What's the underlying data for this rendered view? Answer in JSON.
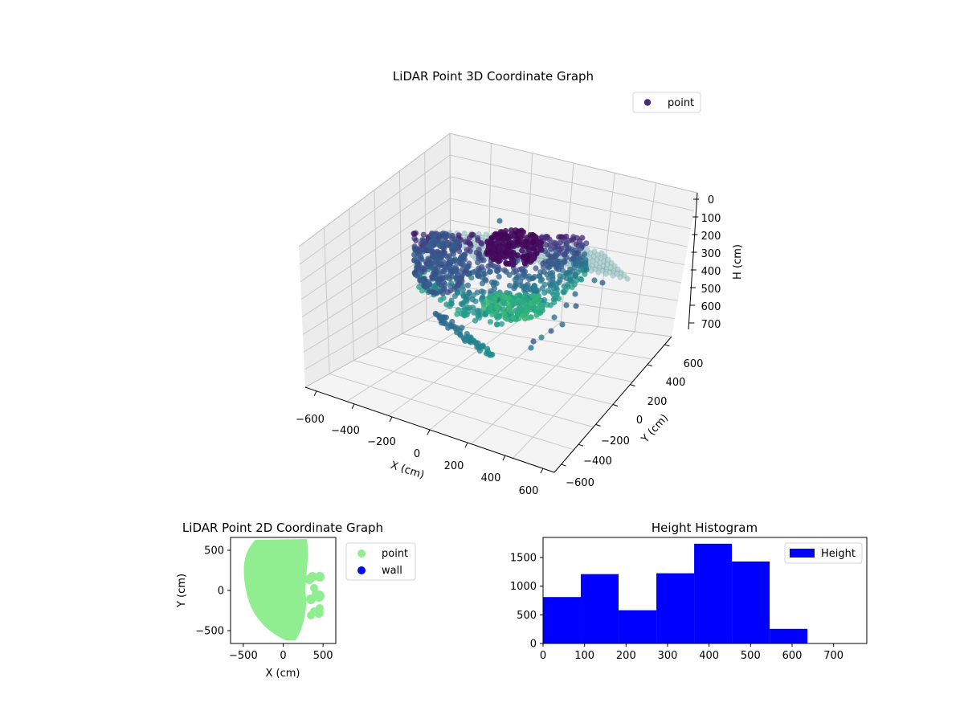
{
  "chart_data": [
    {
      "type": "scatter",
      "title": "LiDAR Point 3D Coordinate Graph",
      "xlabel": "X (cm)",
      "ylabel": "Y (cm)",
      "zlabel": "H (cm)",
      "x_ticks": [
        "−600",
        "−400",
        "−200",
        "0",
        "200",
        "400",
        "600"
      ],
      "y_ticks": [
        "−600",
        "−400",
        "−200",
        "0",
        "200",
        "400",
        "600"
      ],
      "z_ticks": [
        "0",
        "100",
        "200",
        "300",
        "400",
        "500",
        "600",
        "700"
      ],
      "legend": [
        {
          "name": "point",
          "color": "#472c7a"
        }
      ],
      "legend_position": "top-right",
      "colormap": "viridis"
    },
    {
      "type": "scatter",
      "title": "LiDAR Point 2D Coordinate Graph",
      "xlabel": "X (cm)",
      "ylabel": "Y (cm)",
      "xlim": [
        -660,
        660
      ],
      "ylim": [
        -660,
        660
      ],
      "x_ticks": [
        "−500",
        "0",
        "500"
      ],
      "y_ticks": [
        "−500",
        "0",
        "500"
      ],
      "x_tick_values": [
        -500,
        0,
        500
      ],
      "y_tick_values": [
        -500,
        0,
        500
      ],
      "legend": [
        {
          "name": "point",
          "color": "#90ee90"
        },
        {
          "name": "wall",
          "color": "#0000ff"
        }
      ],
      "legend_position": "outside-right"
    },
    {
      "type": "bar",
      "title": "Height Histogram",
      "xlim": [
        0,
        780
      ],
      "ylim": [
        0,
        1850
      ],
      "x_ticks": [
        "0",
        "100",
        "200",
        "300",
        "400",
        "500",
        "600",
        "700"
      ],
      "x_tick_values": [
        0,
        100,
        200,
        300,
        400,
        500,
        600,
        700
      ],
      "y_ticks": [
        "0",
        "500",
        "1000",
        "1500"
      ],
      "y_tick_values": [
        0,
        500,
        1000,
        1500
      ],
      "bin_edges": [
        0,
        91,
        182,
        273,
        364,
        455,
        546,
        637
      ],
      "values": [
        810,
        1210,
        580,
        1225,
        1740,
        1430,
        255
      ],
      "legend": [
        {
          "name": "Height",
          "color": "#0000ff"
        }
      ],
      "legend_position": "top-right"
    }
  ]
}
